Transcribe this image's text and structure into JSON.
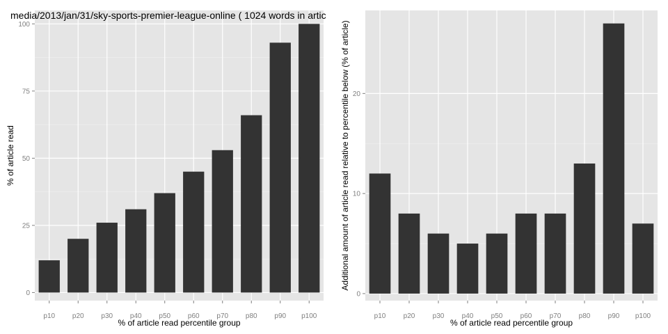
{
  "colors": {
    "panel_background": "#e5e5e5",
    "gridline": "#ffffff",
    "bar_fill": "#333333",
    "tick_label": "#7f7f7f",
    "axis_title": "#000000"
  },
  "chart_data": [
    {
      "type": "bar",
      "title": "media/2013/jan/31/sky-sports-premier-league-online ( 1024 words in artic",
      "xlabel": "% of article read percentile group",
      "ylabel": "% of article read",
      "categories": [
        "p10",
        "p20",
        "p30",
        "p40",
        "p50",
        "p60",
        "p70",
        "p80",
        "p90",
        "p100"
      ],
      "values": [
        12,
        20,
        26,
        31,
        37,
        45,
        53,
        66,
        93,
        100
      ],
      "ylim": [
        -3,
        105
      ],
      "yticks": [
        0,
        25,
        50,
        75,
        100
      ],
      "ytick_labels": [
        "0",
        "25",
        "50",
        "75",
        "100"
      ],
      "grid": true
    },
    {
      "type": "bar",
      "title": "",
      "xlabel": "% of article read percentile group",
      "ylabel": "Additional amount of article read relative to percentile below (% of article)",
      "categories": [
        "p10",
        "p20",
        "p30",
        "p40",
        "p50",
        "p60",
        "p70",
        "p80",
        "p90",
        "p100"
      ],
      "values": [
        12,
        8,
        6,
        5,
        6,
        8,
        8,
        13,
        27,
        7
      ],
      "ylim": [
        -0.7,
        28.3
      ],
      "yticks": [
        0,
        10,
        20
      ],
      "ytick_labels": [
        "0",
        "10",
        "20"
      ],
      "grid": true
    }
  ]
}
